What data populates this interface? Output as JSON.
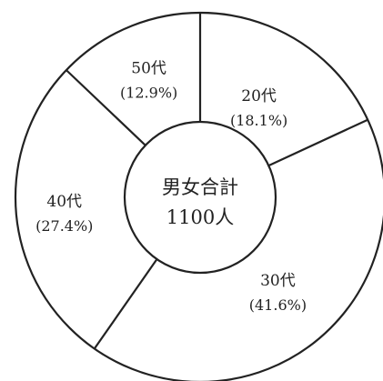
{
  "chart_data": {
    "type": "pie",
    "variant": "donut",
    "center_label": {
      "line1": "男女合計",
      "line2": "1100人"
    },
    "start_angle_deg": 0,
    "direction": "clockwise",
    "slices": [
      {
        "label": "20代",
        "value_text": "(18.1%)",
        "value": 18.1
      },
      {
        "label": "30代",
        "value_text": "(41.6%)",
        "value": 41.6
      },
      {
        "label": "40代",
        "value_text": "(27.4%)",
        "value": 27.4
      },
      {
        "label": "50代",
        "value_text": "(12.9%)",
        "value": 12.9
      }
    ],
    "colors": {
      "line": "#222222",
      "fill": "#ffffff"
    }
  }
}
